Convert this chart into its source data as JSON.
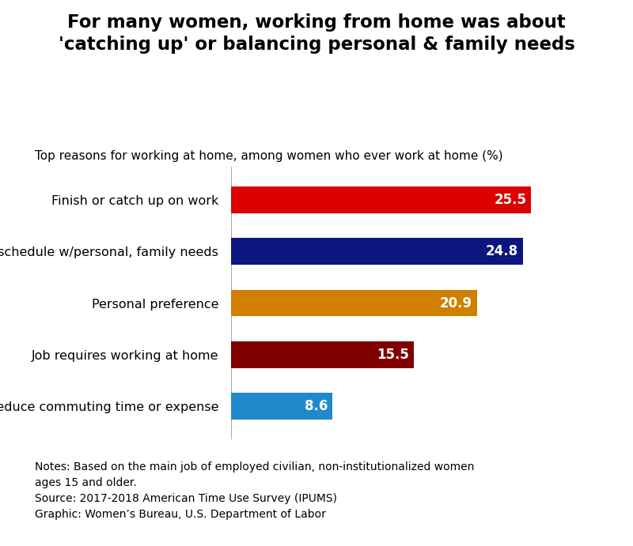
{
  "title": "For many women, working from home was about\n'catching up' or balancing personal & family needs",
  "subtitle": "Top reasons for working at home, among women who ever work at home (%)",
  "categories": [
    "Finish or catch up on work",
    "Coordinate schedule w/personal, family needs",
    "Personal preference",
    "Job requires working at home",
    "Reduce commuting time or expense"
  ],
  "values": [
    25.5,
    24.8,
    20.9,
    15.5,
    8.6
  ],
  "bar_colors": [
    "#dd0000",
    "#0d1580",
    "#d07f00",
    "#800000",
    "#2288cc"
  ],
  "label_color": "#ffffff",
  "xlim": [
    0,
    32
  ],
  "notes_lines": [
    "Notes: Based on the main job of employed civilian, non-institutionalized women",
    "ages 15 and older.",
    "Source: 2017-2018 American Time Use Survey (IPUMS)",
    "Graphic: Women’s Bureau, U.S. Department of Labor"
  ],
  "background_color": "#ffffff",
  "title_fontsize": 16.5,
  "subtitle_fontsize": 11,
  "category_fontsize": 11.5,
  "value_fontsize": 12,
  "notes_fontsize": 10,
  "bar_height": 0.52
}
